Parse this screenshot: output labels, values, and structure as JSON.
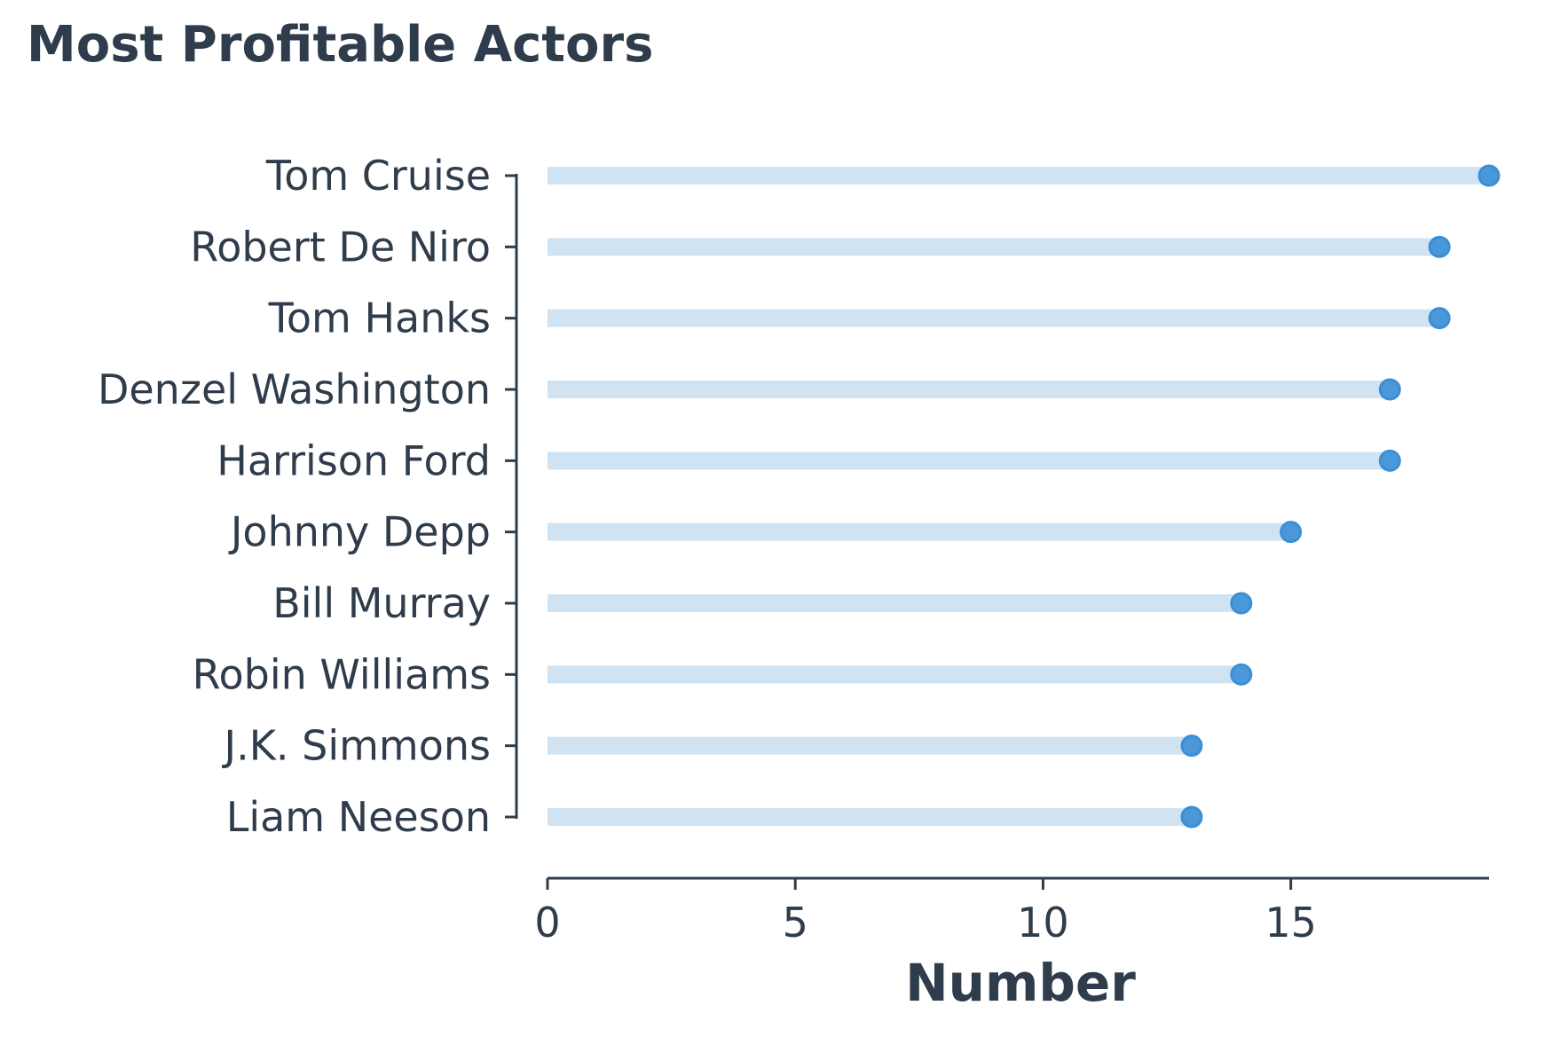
{
  "chart_data": {
    "type": "lollipop",
    "title": "Most Profitable Actors",
    "xlabel": "Number",
    "ylabel": "",
    "xlim": [
      0,
      19
    ],
    "x_ticks": [
      0,
      5,
      10,
      15
    ],
    "grid": false,
    "categories": [
      "Tom Cruise",
      "Robert De Niro",
      "Tom Hanks",
      "Denzel Washington",
      "Harrison Ford",
      "Johnny Depp",
      "Bill Murray",
      "Robin Williams",
      "J.K. Simmons",
      "Liam Neeson"
    ],
    "values": [
      19,
      18,
      18,
      17,
      17,
      15,
      14,
      14,
      13,
      13
    ],
    "colors": {
      "stem": "#cfe3f3",
      "marker_fill": "#4a98d8",
      "marker_edge": "#3b8fd4",
      "text": "#2f3c4b",
      "axis": "#2f3c4b"
    }
  }
}
